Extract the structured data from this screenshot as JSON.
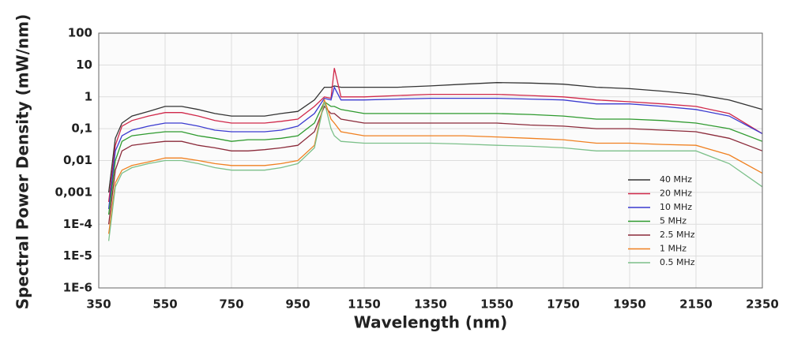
{
  "chart_data": {
    "type": "line",
    "x_label": "Wavelength (nm)",
    "y_label": "Spectral Power Density (mW/nm)",
    "log_y": true,
    "grid": true,
    "legend": "right",
    "x": [
      380,
      400,
      420,
      450,
      500,
      550,
      600,
      650,
      700,
      750,
      800,
      850,
      900,
      950,
      1000,
      1030,
      1050,
      1060,
      1080,
      1150,
      1250,
      1350,
      1450,
      1550,
      1650,
      1750,
      1850,
      1950,
      2050,
      2150,
      2250,
      2350
    ],
    "series": [
      {
        "name": "40 MHz",
        "color": "#333333",
        "values": [
          0.001,
          0.05,
          0.15,
          0.25,
          0.35,
          0.5,
          0.5,
          0.4,
          0.3,
          0.25,
          0.25,
          0.25,
          0.3,
          0.35,
          0.8,
          2,
          2,
          2.2,
          2,
          2,
          2,
          2.2,
          2.5,
          2.8,
          2.7,
          2.5,
          2,
          1.8,
          1.5,
          1.2,
          0.8,
          0.4
        ]
      },
      {
        "name": "20 MHz",
        "color": "#d0284a",
        "values": [
          0.0005,
          0.03,
          0.12,
          0.18,
          0.25,
          0.32,
          0.32,
          0.25,
          0.18,
          0.15,
          0.15,
          0.15,
          0.17,
          0.2,
          0.5,
          1,
          0.9,
          8,
          1,
          1,
          1.1,
          1.2,
          1.2,
          1.2,
          1.1,
          1,
          0.8,
          0.7,
          0.6,
          0.5,
          0.3,
          0.07
        ]
      },
      {
        "name": "10 MHz",
        "color": "#3a3ad0",
        "values": [
          0.0003,
          0.02,
          0.06,
          0.09,
          0.12,
          0.15,
          0.15,
          0.12,
          0.09,
          0.08,
          0.08,
          0.08,
          0.09,
          0.12,
          0.3,
          0.9,
          0.8,
          2,
          0.8,
          0.8,
          0.85,
          0.9,
          0.9,
          0.9,
          0.85,
          0.8,
          0.6,
          0.6,
          0.5,
          0.4,
          0.25,
          0.07
        ]
      },
      {
        "name": "5 MHz",
        "color": "#2e9a2e",
        "values": [
          0.0002,
          0.01,
          0.04,
          0.06,
          0.07,
          0.08,
          0.08,
          0.06,
          0.05,
          0.04,
          0.045,
          0.045,
          0.05,
          0.06,
          0.15,
          0.7,
          0.5,
          0.5,
          0.4,
          0.3,
          0.3,
          0.3,
          0.3,
          0.3,
          0.28,
          0.25,
          0.2,
          0.2,
          0.18,
          0.15,
          0.1,
          0.04
        ]
      },
      {
        "name": "2.5 MHz",
        "color": "#8b2a3a",
        "values": [
          0.0001,
          0.005,
          0.02,
          0.03,
          0.035,
          0.04,
          0.04,
          0.03,
          0.025,
          0.02,
          0.02,
          0.022,
          0.025,
          0.03,
          0.08,
          0.5,
          0.3,
          0.3,
          0.2,
          0.15,
          0.15,
          0.15,
          0.15,
          0.15,
          0.13,
          0.12,
          0.1,
          0.1,
          0.09,
          0.08,
          0.05,
          0.02
        ]
      },
      {
        "name": "1 MHz",
        "color": "#f08020",
        "values": [
          5e-05,
          0.002,
          0.005,
          0.007,
          0.009,
          0.012,
          0.012,
          0.01,
          0.008,
          0.007,
          0.007,
          0.007,
          0.008,
          0.01,
          0.03,
          0.8,
          0.2,
          0.15,
          0.08,
          0.06,
          0.06,
          0.06,
          0.06,
          0.055,
          0.05,
          0.045,
          0.035,
          0.035,
          0.032,
          0.03,
          0.015,
          0.004
        ]
      },
      {
        "name": "0.5 MHz",
        "color": "#7cc08a",
        "values": [
          3e-05,
          0.0015,
          0.004,
          0.006,
          0.008,
          0.01,
          0.01,
          0.008,
          0.006,
          0.005,
          0.005,
          0.005,
          0.006,
          0.008,
          0.025,
          0.7,
          0.1,
          0.06,
          0.04,
          0.035,
          0.035,
          0.035,
          0.033,
          0.03,
          0.028,
          0.025,
          0.02,
          0.02,
          0.02,
          0.02,
          0.008,
          0.0015
        ]
      }
    ],
    "xlim": [
      350,
      2350
    ],
    "xticks": [
      350,
      550,
      750,
      950,
      1150,
      1350,
      1550,
      1750,
      1950,
      2150,
      2350
    ],
    "ylim": [
      1e-06,
      100
    ],
    "yticks": [
      {
        "value": 1e-06,
        "label": "1E-6"
      },
      {
        "value": 1e-05,
        "label": "1E-5"
      },
      {
        "value": 0.0001,
        "label": "1E-4"
      },
      {
        "value": 0.001,
        "label": "0,001"
      },
      {
        "value": 0.01,
        "label": "0,01"
      },
      {
        "value": 0.1,
        "label": "0,1"
      },
      1,
      10,
      100
    ]
  }
}
